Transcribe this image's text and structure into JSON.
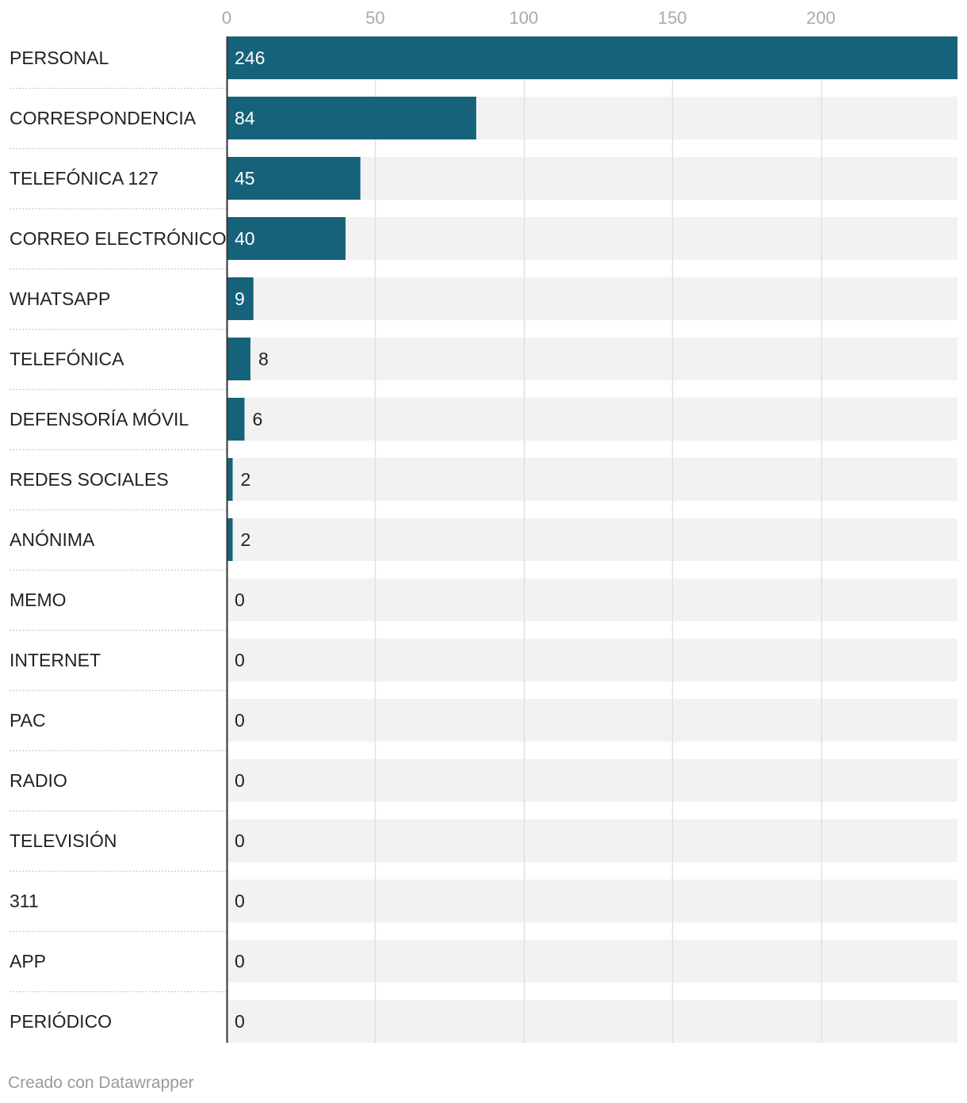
{
  "chart_data": {
    "type": "bar",
    "orientation": "horizontal",
    "categories": [
      "PERSONAL",
      "CORRESPONDENCIA",
      "TELEFÓNICA 127",
      "CORREO ELECTRÓNICO",
      "WHATSAPP",
      "TELEFÓNICA",
      "DEFENSORÍA MÓVIL",
      "REDES SOCIALES",
      "ANÓNIMA",
      "MEMO",
      "INTERNET",
      "PAC",
      "RADIO",
      "TELEVISIÓN",
      "311",
      "APP",
      "PERIÓDICO"
    ],
    "values": [
      246,
      84,
      45,
      40,
      9,
      8,
      6,
      2,
      2,
      0,
      0,
      0,
      0,
      0,
      0,
      0,
      0
    ],
    "xlim": [
      0,
      246
    ],
    "xticks": [
      0,
      50,
      100,
      150,
      200
    ],
    "grid": true,
    "value_labels": true,
    "colors": {
      "bar": "#17627b",
      "track": "#f2f2f2",
      "grid": "#e0e0e0",
      "axis": "#333333",
      "separator": "#cccccc",
      "label_inside": "#ffffff",
      "label_outside": "#222222"
    }
  },
  "footer": {
    "credit": "Creado con Datawrapper"
  }
}
